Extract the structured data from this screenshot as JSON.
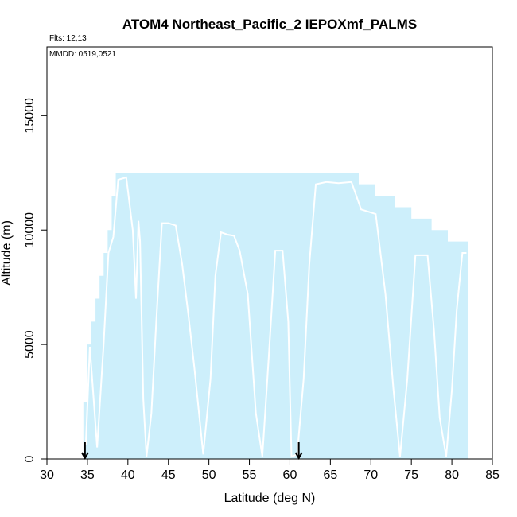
{
  "chart_data": {
    "type": "area",
    "title": "ATOM4 Northeast_Pacific_2 IEPOXmf_PALMS",
    "flights_note": "Flts: 12,13",
    "date_note": "MMDD: 0519,0521",
    "xlabel": "Latitude (deg N)",
    "ylabel": "Altitude (m)",
    "xlim": [
      30,
      85
    ],
    "ylim": [
      0,
      18000
    ],
    "xticks": [
      30,
      35,
      40,
      45,
      50,
      55,
      60,
      65,
      70,
      75,
      80,
      85
    ],
    "yticks": [
      0,
      5000,
      10000,
      15000
    ],
    "grid": false,
    "legend": "none",
    "coverage_color": "#cdeffb",
    "track_color": "#ffffff",
    "coverage_envelope": {
      "x": [
        34.5,
        35.0,
        35.0,
        35.5,
        35.5,
        36.0,
        36.0,
        36.5,
        36.5,
        37.0,
        37.0,
        37.5,
        37.5,
        38.0,
        38.0,
        38.5,
        38.5,
        68.5,
        68.5,
        70.5,
        70.5,
        73.0,
        73.0,
        75.0,
        75.0,
        77.5,
        77.5,
        79.5,
        79.5,
        82.0,
        82.0
      ],
      "y": [
        2500,
        2500,
        5000,
        5000,
        6000,
        6000,
        7000,
        7000,
        8000,
        8000,
        9000,
        9000,
        10000,
        10000,
        11500,
        11500,
        12500,
        12500,
        12000,
        12000,
        11500,
        11500,
        11000,
        11000,
        10500,
        10500,
        10000,
        10000,
        9500,
        9500,
        9000
      ]
    },
    "flight_track": {
      "x": [
        34.8,
        35.3,
        36.2,
        37.0,
        37.6,
        38.2,
        38.8,
        39.8,
        40.6,
        41.0,
        41.3,
        41.5,
        41.9,
        42.3,
        42.9,
        43.5,
        44.2,
        45.0,
        45.9,
        46.7,
        47.5,
        48.2,
        49.3,
        50.2,
        50.8,
        51.5,
        52.3,
        53.1,
        53.8,
        54.8,
        55.8,
        56.6,
        57.4,
        58.2,
        59.1,
        59.8,
        60.2,
        60.9,
        61.7,
        62.4,
        63.2,
        64.5,
        66.0,
        67.6,
        68.8,
        69.7,
        70.6,
        71.8,
        72.8,
        73.6,
        74.5,
        75.5,
        76.2,
        77.0,
        77.8,
        78.5,
        79.3,
        80.0,
        80.6,
        81.3,
        81.8
      ],
      "y": [
        600,
        4900,
        500,
        5000,
        9000,
        9700,
        12200,
        12300,
        10000,
        7000,
        10400,
        9500,
        2600,
        100,
        2000,
        6000,
        10300,
        10300,
        10200,
        8500,
        6200,
        4000,
        200,
        3500,
        8000,
        9900,
        9800,
        9750,
        9100,
        7200,
        2000,
        100,
        4500,
        9100,
        9100,
        6000,
        100,
        200,
        3500,
        8500,
        12000,
        12100,
        12050,
        12100,
        10900,
        10800,
        10700,
        7200,
        3000,
        100,
        3500,
        8900,
        8900,
        8900,
        5600,
        1800,
        100,
        3000,
        6500,
        9000,
        9000
      ]
    },
    "arrow_markers_x": [
      34.7,
      61.1
    ]
  }
}
